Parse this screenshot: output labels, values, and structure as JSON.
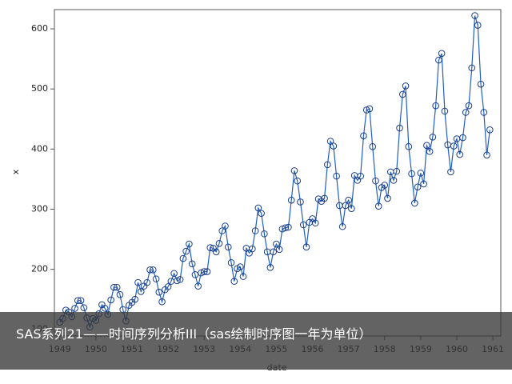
{
  "chart_data": {
    "type": "line",
    "x_label": "date",
    "y_label": "x",
    "color": "#1f5fbf",
    "marker_color": "#1a3d8a",
    "x": [
      1949.0,
      1949.083,
      1949.167,
      1949.25,
      1949.333,
      1949.417,
      1949.5,
      1949.583,
      1949.667,
      1949.75,
      1949.833,
      1949.917,
      1950.0,
      1950.083,
      1950.167,
      1950.25,
      1950.333,
      1950.417,
      1950.5,
      1950.583,
      1950.667,
      1950.75,
      1950.833,
      1950.917,
      1951.0,
      1951.083,
      1951.167,
      1951.25,
      1951.333,
      1951.417,
      1951.5,
      1951.583,
      1951.667,
      1951.75,
      1951.833,
      1951.917,
      1952.0,
      1952.083,
      1952.167,
      1952.25,
      1952.333,
      1952.417,
      1952.5,
      1952.583,
      1952.667,
      1952.75,
      1952.833,
      1952.917,
      1953.0,
      1953.083,
      1953.167,
      1953.25,
      1953.333,
      1953.417,
      1953.5,
      1953.583,
      1953.667,
      1953.75,
      1953.833,
      1953.917,
      1954.0,
      1954.083,
      1954.167,
      1954.25,
      1954.333,
      1954.417,
      1954.5,
      1954.583,
      1954.667,
      1954.75,
      1954.833,
      1954.917,
      1955.0,
      1955.083,
      1955.167,
      1955.25,
      1955.333,
      1955.417,
      1955.5,
      1955.583,
      1955.667,
      1955.75,
      1955.833,
      1955.917,
      1956.0,
      1956.083,
      1956.167,
      1956.25,
      1956.333,
      1956.417,
      1956.5,
      1956.583,
      1956.667,
      1956.75,
      1956.833,
      1956.917,
      1957.0,
      1957.083,
      1957.167,
      1957.25,
      1957.333,
      1957.417,
      1957.5,
      1957.583,
      1957.667,
      1957.75,
      1957.833,
      1957.917,
      1958.0,
      1958.083,
      1958.167,
      1958.25,
      1958.333,
      1958.417,
      1958.5,
      1958.583,
      1958.667,
      1958.75,
      1958.833,
      1958.917,
      1959.0,
      1959.083,
      1959.167,
      1959.25,
      1959.333,
      1959.417,
      1959.5,
      1959.583,
      1959.667,
      1959.75,
      1959.833,
      1959.917,
      1960.0,
      1960.083,
      1960.167,
      1960.25,
      1960.333,
      1960.417,
      1960.5,
      1960.583,
      1960.667,
      1960.75,
      1960.833,
      1960.917
    ],
    "values": [
      112,
      118,
      132,
      129,
      121,
      135,
      148,
      148,
      136,
      119,
      104,
      118,
      115,
      126,
      141,
      135,
      125,
      149,
      170,
      170,
      158,
      133,
      114,
      140,
      145,
      150,
      178,
      163,
      172,
      178,
      199,
      199,
      184,
      162,
      146,
      166,
      171,
      180,
      193,
      181,
      183,
      218,
      230,
      242,
      209,
      191,
      172,
      194,
      196,
      196,
      236,
      235,
      229,
      243,
      264,
      272,
      237,
      211,
      180,
      201,
      204,
      188,
      235,
      227,
      234,
      264,
      302,
      293,
      259,
      229,
      203,
      229,
      242,
      233,
      267,
      269,
      270,
      315,
      364,
      347,
      312,
      274,
      237,
      278,
      284,
      277,
      317,
      313,
      318,
      374,
      413,
      405,
      355,
      306,
      271,
      306,
      315,
      301,
      356,
      348,
      355,
      422,
      465,
      467,
      404,
      347,
      305,
      336,
      340,
      318,
      362,
      348,
      363,
      435,
      491,
      505,
      404,
      359,
      310,
      337,
      360,
      342,
      406,
      396,
      420,
      472,
      548,
      559,
      463,
      407,
      362,
      405,
      417,
      391,
      419,
      461,
      472,
      535,
      622,
      606,
      508,
      461,
      390,
      432
    ],
    "xlim": [
      1948.85,
      1961.22
    ],
    "xticks": [
      1949,
      1950,
      1951,
      1952,
      1953,
      1954,
      1955,
      1956,
      1957,
      1958,
      1959,
      1960,
      1961
    ],
    "ylim": [
      89,
      632
    ],
    "yticks": [
      100,
      200,
      300,
      400,
      500,
      600
    ]
  },
  "caption": "SAS系列21——时间序列分析III（sas绘制时序图一年为单位）"
}
